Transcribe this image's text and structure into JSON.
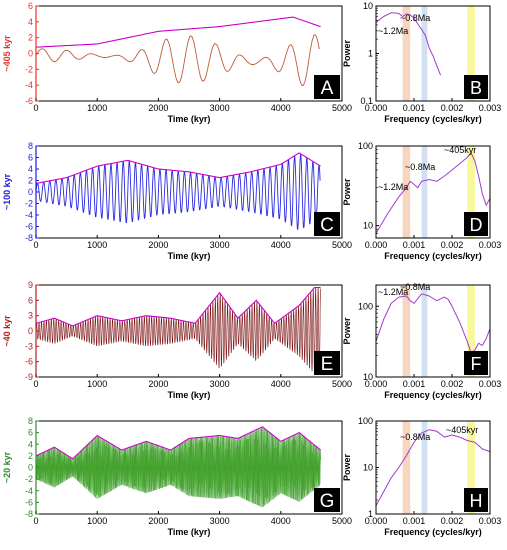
{
  "colors": {
    "envelope": "#cc00cc",
    "band_12": "#f5cfb4",
    "band_08": "#c9daf1",
    "band_405": "#f7f78a",
    "power": "#a23cc9"
  },
  "chart_data": [
    {
      "panel": "A",
      "type": "line",
      "ylabel": "~405 kyr",
      "ylabel_color": "#e8322c",
      "axis_color": "#e8322c",
      "signal_color": "#c05a3a",
      "xlabel": "Time (kyr)",
      "xlim": [
        0,
        5000
      ],
      "ylim": [
        -6,
        6
      ],
      "x_ticks": [
        "0",
        "1000",
        "2000",
        "3000",
        "4000",
        "5000"
      ],
      "y_ticks": [
        "6",
        "4",
        "2",
        "0",
        "-2",
        "-4",
        "-6"
      ],
      "series": [
        {
          "role": "signal",
          "period_kyr": 405
        },
        {
          "role": "envelope",
          "x": [
            0,
            1000,
            2000,
            3000,
            4200,
            4650
          ],
          "y": [
            0.8,
            1.2,
            2.8,
            3.4,
            4.6,
            3.4
          ]
        }
      ]
    },
    {
      "panel": "B",
      "type": "line",
      "ylabel": "Power",
      "xlim": [
        0,
        0.003
      ],
      "ylim": [
        0.1,
        10
      ],
      "yscale": "log",
      "x_ticks": [
        "0.000",
        "0.001",
        "0.002",
        "0.003"
      ],
      "y_ticks": [
        "10",
        "1",
        "0.1"
      ],
      "bands": [
        [
          0.0007,
          0.0009
        ],
        [
          0.0012,
          0.00135
        ],
        [
          0.0024,
          0.0026
        ]
      ],
      "annotations": [
        "~1.2Ma",
        "~0.8Ma"
      ],
      "series": [
        {
          "x": [
            0,
            0.0002,
            0.0004,
            0.0006,
            0.0007,
            0.0008,
            0.0009,
            0.001,
            0.0011,
            0.0012,
            0.0013,
            0.0014,
            0.0015,
            0.0016,
            0.0017
          ],
          "y": [
            4.5,
            6.0,
            7.2,
            7.0,
            6.0,
            6.8,
            6.5,
            5.5,
            4.2,
            3.2,
            2.4,
            1.3,
            0.9,
            0.55,
            0.35
          ]
        }
      ]
    },
    {
      "panel": "C",
      "type": "line",
      "ylabel": "~100 kyr",
      "ylabel_color": "#1c1cd6",
      "axis_color": "#1c1cd6",
      "signal_color": "#2a2ae0",
      "xlabel": "Time (kyr)",
      "xlim": [
        0,
        5000
      ],
      "ylim": [
        -8,
        8
      ],
      "x_ticks": [
        "0",
        "1000",
        "2000",
        "3000",
        "4000",
        "5000"
      ],
      "y_ticks": [
        "8",
        "6",
        "4",
        "2",
        "0",
        "-2",
        "-4",
        "-6",
        "-8"
      ],
      "series": [
        {
          "role": "signal",
          "period_kyr": 100
        },
        {
          "role": "envelope",
          "x": [
            0,
            500,
            1000,
            1500,
            2000,
            2500,
            3000,
            3500,
            4000,
            4300,
            4650
          ],
          "y": [
            1.5,
            2.5,
            4.5,
            5.5,
            4.0,
            3.5,
            2.5,
            3.5,
            4.8,
            6.8,
            4.5
          ]
        }
      ]
    },
    {
      "panel": "D",
      "type": "line",
      "ylabel": "Power",
      "xlim": [
        0,
        0.003
      ],
      "ylim": [
        7,
        100
      ],
      "yscale": "log",
      "x_ticks": [
        "0.000",
        "0.001",
        "0.002",
        "0.003"
      ],
      "y_ticks": [
        "100",
        "10"
      ],
      "bands": [
        [
          0.0007,
          0.0009
        ],
        [
          0.0012,
          0.00135
        ],
        [
          0.0024,
          0.0026
        ]
      ],
      "annotations": [
        "~1.2Ma",
        "~0.8Ma",
        "~405kyr"
      ],
      "series": [
        {
          "x": [
            0,
            0.0003,
            0.0006,
            0.0008,
            0.0009,
            0.001,
            0.0011,
            0.0012,
            0.0014,
            0.0016,
            0.0018,
            0.002,
            0.0022,
            0.0024,
            0.0025,
            0.0026,
            0.0027,
            0.0028,
            0.0029,
            0.003
          ],
          "y": [
            8,
            14,
            23,
            30,
            36,
            33,
            30,
            36,
            38,
            36,
            42,
            50,
            60,
            72,
            82,
            65,
            42,
            25,
            18,
            22
          ]
        }
      ]
    },
    {
      "panel": "E",
      "type": "line",
      "ylabel": "~40 kyr",
      "ylabel_color": "#b02020",
      "axis_color": "#b02020",
      "signal_color": "#7a1010",
      "xlabel": "Time (kyr)",
      "xlim": [
        0,
        5000
      ],
      "ylim": [
        -9,
        9
      ],
      "x_ticks": [
        "0",
        "1000",
        "2000",
        "3000",
        "4000",
        "5000"
      ],
      "y_ticks": [
        "9",
        "6",
        "3",
        "0",
        "-3",
        "-6",
        "-9"
      ],
      "series": [
        {
          "role": "signal",
          "period_kyr": 40
        },
        {
          "role": "envelope",
          "x": [
            0,
            300,
            600,
            1000,
            1400,
            1800,
            2200,
            2600,
            3000,
            3300,
            3600,
            3900,
            4300,
            4550
          ],
          "y": [
            1.5,
            2.5,
            1.0,
            3.0,
            2.0,
            3.0,
            2.5,
            1.5,
            7.5,
            2.5,
            6.0,
            1.5,
            5.0,
            8.5
          ]
        }
      ]
    },
    {
      "panel": "F",
      "type": "line",
      "ylabel": "Power",
      "xlim": [
        0,
        0.003
      ],
      "ylim": [
        10,
        200
      ],
      "yscale": "log",
      "x_ticks": [
        "0.000",
        "0.001",
        "0.002",
        "0.003"
      ],
      "y_ticks": [
        "100",
        "10"
      ],
      "bands": [
        [
          0.0007,
          0.0009
        ],
        [
          0.0012,
          0.00135
        ],
        [
          0.0024,
          0.0026
        ]
      ],
      "annotations": [
        "~1.2Ma",
        "~0.8Ma"
      ],
      "series": [
        {
          "x": [
            0,
            0.0002,
            0.0004,
            0.0006,
            0.0008,
            0.0009,
            0.001,
            0.0012,
            0.0014,
            0.0016,
            0.0018,
            0.0019,
            0.002,
            0.0022,
            0.0024,
            0.0025,
            0.0026,
            0.0027,
            0.0028,
            0.0029,
            0.003
          ],
          "y": [
            32,
            65,
            110,
            135,
            140,
            120,
            110,
            150,
            140,
            120,
            135,
            125,
            100,
            60,
            32,
            22,
            24,
            30,
            28,
            35,
            48
          ]
        }
      ]
    },
    {
      "panel": "G",
      "type": "line",
      "ylabel": "~20 kyr",
      "ylabel_color": "#2e8b2e",
      "axis_color": "#2e8b2e",
      "signal_color": "#3a9a2a",
      "xlabel": "Time (kyr)",
      "xlim": [
        0,
        5000
      ],
      "ylim": [
        -8,
        8
      ],
      "x_ticks": [
        "0",
        "1000",
        "2000",
        "3000",
        "4000",
        "5000"
      ],
      "y_ticks": [
        "8",
        "6",
        "4",
        "2",
        "0",
        "-2",
        "-4",
        "-6",
        "-8"
      ],
      "series": [
        {
          "role": "signal",
          "period_kyr": 20
        },
        {
          "role": "envelope",
          "x": [
            0,
            300,
            600,
            1000,
            1400,
            1800,
            2200,
            2500,
            3000,
            3300,
            3700,
            4000,
            4300,
            4650
          ],
          "y": [
            2.0,
            3.5,
            1.5,
            5.5,
            3.0,
            4.5,
            3.0,
            5.0,
            5.5,
            5.0,
            7.0,
            4.5,
            6.0,
            3.0
          ]
        }
      ]
    },
    {
      "panel": "H",
      "type": "line",
      "ylabel": "Power",
      "xlim": [
        0,
        0.003
      ],
      "ylim": [
        1,
        100
      ],
      "yscale": "log",
      "x_ticks": [
        "0.000",
        "0.001",
        "0.002",
        "0.003"
      ],
      "y_ticks": [
        "100",
        "10",
        "1"
      ],
      "bands": [
        [
          0.0007,
          0.0009
        ],
        [
          0.0012,
          0.00135
        ],
        [
          0.0024,
          0.0026
        ]
      ],
      "annotations": [
        "~0.8Ma",
        "~405kyr"
      ],
      "series": [
        {
          "x": [
            0,
            0.0002,
            0.0004,
            0.0006,
            0.0008,
            0.0009,
            0.001,
            0.0012,
            0.0014,
            0.0016,
            0.0018,
            0.002,
            0.0022,
            0.0024,
            0.0026,
            0.0028,
            0.003
          ],
          "y": [
            1.5,
            3,
            6,
            10,
            18,
            25,
            35,
            55,
            65,
            60,
            45,
            50,
            45,
            38,
            35,
            25,
            22
          ]
        }
      ]
    }
  ],
  "frequency_label": "Frequency (cycles/kyr)"
}
